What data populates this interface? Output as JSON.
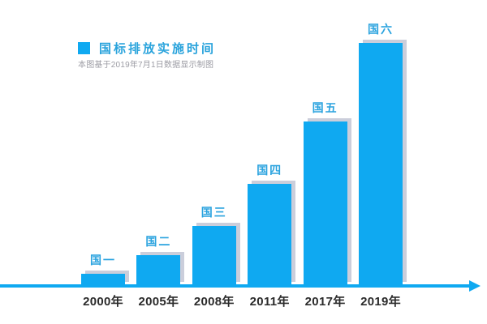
{
  "legend": {
    "title": "国标排放实施时间",
    "subtitle": "本图基于2019年7月1日数据显示制图"
  },
  "colors": {
    "bar": "#0FA9F1",
    "bar_shadow": "#CBCEDB",
    "bar_label_text": "#2AA3DF",
    "legend_title_text": "#29A3DC",
    "subtitle_text": "#9C9CA4",
    "axis": "#0FA9F1",
    "x_tick_text": "#2B2B2B",
    "background": "#FFFFFF"
  },
  "chart_data": {
    "type": "bar",
    "title": "国标排放实施时间",
    "subtitle": "本图基于2019年7月1日数据显示制图",
    "categories": [
      "2000年",
      "2005年",
      "2008年",
      "2011年",
      "2017年",
      "2019年"
    ],
    "bar_labels": [
      "国一",
      "国二",
      "国三",
      "国四",
      "国五",
      "国六"
    ],
    "series": [
      {
        "name": "国标排放实施时间",
        "values": [
          14,
          37,
          73,
          125,
          202,
          299
        ],
        "units": "relative bar height in px (no numeric y-axis shown)"
      }
    ],
    "xlabel": "",
    "ylabel": "",
    "grid": false,
    "y_axis_shown": false,
    "x_axis_style": "horizontal blue timeline arrow pointing right",
    "legend_position": "top-left"
  }
}
